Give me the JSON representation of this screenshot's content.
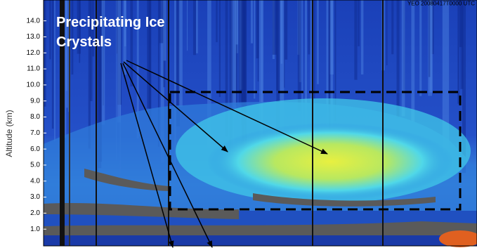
{
  "chart_data": {
    "type": "image",
    "subtitle": "YEO  20080417T0000 UTC",
    "annotation": "Precipitating Ice Crystals",
    "ylabel": "Altitude (km)",
    "ylim": [
      0,
      15.3
    ],
    "yticks": [
      {
        "value": 1,
        "label": "1.0"
      },
      {
        "value": 2,
        "label": "2.0"
      },
      {
        "value": 3,
        "label": "3.0"
      },
      {
        "value": 4,
        "label": "4.0"
      },
      {
        "value": 5,
        "label": "5.0"
      },
      {
        "value": 6,
        "label": "6.0"
      },
      {
        "value": 7,
        "label": "7.0"
      },
      {
        "value": 8,
        "label": "8.0"
      },
      {
        "value": 9,
        "label": "9.0"
      },
      {
        "value": 10,
        "label": "10.0"
      },
      {
        "value": 11,
        "label": "11.0"
      },
      {
        "value": 12,
        "label": "12.0"
      },
      {
        "value": 13,
        "label": "13.0"
      },
      {
        "value": 14,
        "label": "14.0"
      }
    ]
  }
}
